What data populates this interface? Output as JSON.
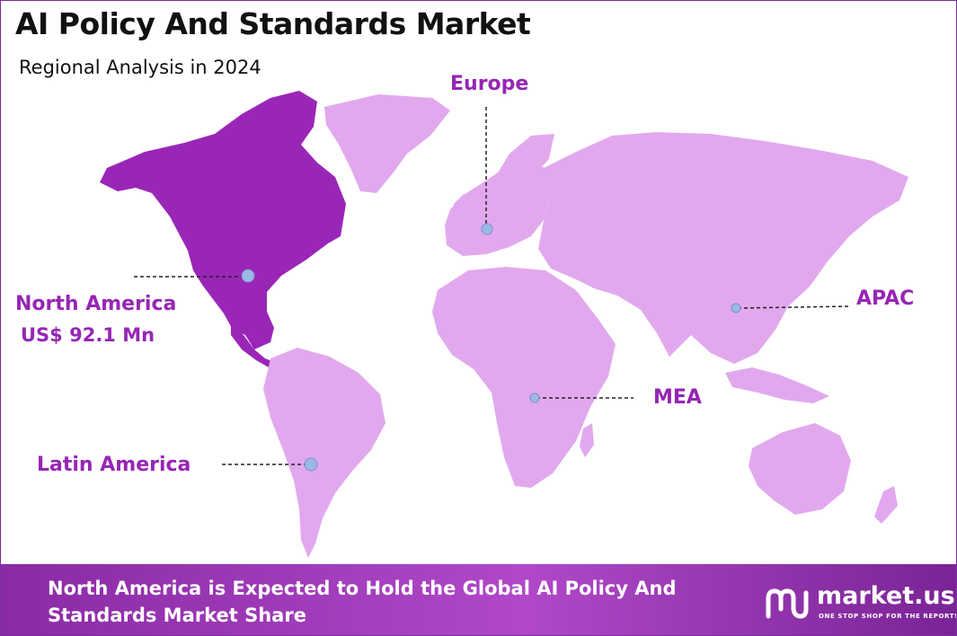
{
  "header": {
    "title": "AI Policy And Standards Market",
    "subtitle": "Regional Analysis in 2024"
  },
  "regions": {
    "north_america": {
      "label": "North America",
      "value": "US$ 92.1 Mn"
    },
    "europe": {
      "label": "Europe"
    },
    "apac": {
      "label": "APAC"
    },
    "mea": {
      "label": "MEA"
    },
    "latin_america": {
      "label": "Latin America"
    }
  },
  "footer": {
    "text": "North America is Expected to Hold the Global AI Policy And Standards Market Share"
  },
  "logo": {
    "name": "market.us",
    "tagline": "ONE STOP SHOP FOR THE REPORTS"
  },
  "colors": {
    "highlight_region": "#9a26b8",
    "other_regions": "#e2a8ee",
    "label": "#9626b4",
    "marker": "#9db8e8",
    "banner": "#9a34b8"
  },
  "icons": [
    "market-us-logo-icon"
  ]
}
